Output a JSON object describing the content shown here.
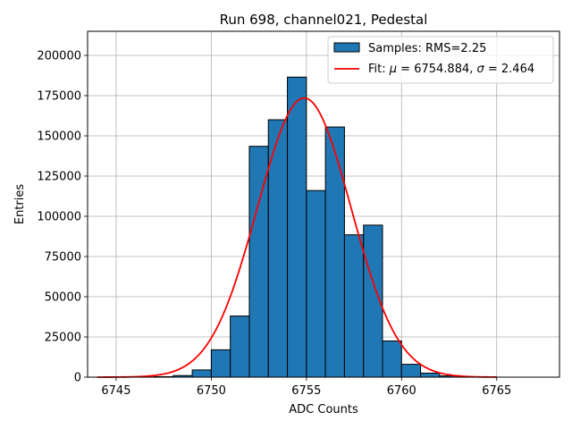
{
  "chart_data": {
    "type": "bar",
    "title": "Run 698, channel021, Pedestal",
    "xlabel": "ADC Counts",
    "ylabel": "Entries",
    "xlim": [
      6743.5,
      6768.3
    ],
    "ylim": [
      0,
      215000
    ],
    "xticks": [
      6745,
      6750,
      6755,
      6760,
      6765
    ],
    "yticks": [
      0,
      25000,
      50000,
      75000,
      100000,
      125000,
      150000,
      175000,
      200000
    ],
    "grid": true,
    "legend_position": "top-right",
    "bin_width": 1,
    "histogram": {
      "name": "Samples: RMS=2.25",
      "color": "#1f77b4",
      "bin_left_edges": [
        6746,
        6747,
        6748,
        6749,
        6750,
        6751,
        6752,
        6753,
        6754,
        6755,
        6756,
        6757,
        6758,
        6759,
        6760,
        6761,
        6762,
        6763
      ],
      "values": [
        100,
        300,
        1000,
        4500,
        17000,
        38000,
        143500,
        160000,
        186500,
        116000,
        155500,
        88500,
        94500,
        22500,
        8000,
        2500,
        800,
        200
      ]
    },
    "fit": {
      "name_prefix": "Fit: ",
      "name_mu": "μ",
      "name_middle": " = 6754.884, ",
      "name_sigma": "σ",
      "name_suffix": " = 2.464",
      "color": "#ff0000",
      "mu": 6754.884,
      "sigma": 2.464,
      "amplitude": 173500,
      "x_range": [
        6744,
        6765
      ]
    }
  }
}
